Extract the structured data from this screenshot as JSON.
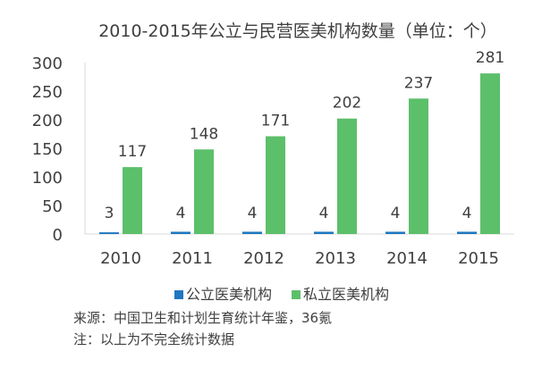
{
  "chart_data": {
    "type": "bar",
    "title": "2010-2015年公立与民营医美机构数量（单位：个）",
    "categories": [
      "2010",
      "2011",
      "2012",
      "2013",
      "2014",
      "2015"
    ],
    "series": [
      {
        "name": "公立医美机构",
        "color": "#1f77c0",
        "values": [
          3,
          4,
          4,
          4,
          4,
          4
        ]
      },
      {
        "name": "私立医美机构",
        "color": "#5cbf6a",
        "values": [
          117,
          148,
          171,
          202,
          237,
          281
        ]
      }
    ],
    "ylim": [
      0,
      300
    ],
    "yticks": [
      0,
      50,
      100,
      150,
      200,
      250,
      300
    ],
    "xlabel": "",
    "ylabel": "",
    "grid": false,
    "legend": "bottom"
  },
  "source": "来源：中国卫生和计划生育统计年鉴，36氪",
  "note": "注：以上为不完全统计数据"
}
